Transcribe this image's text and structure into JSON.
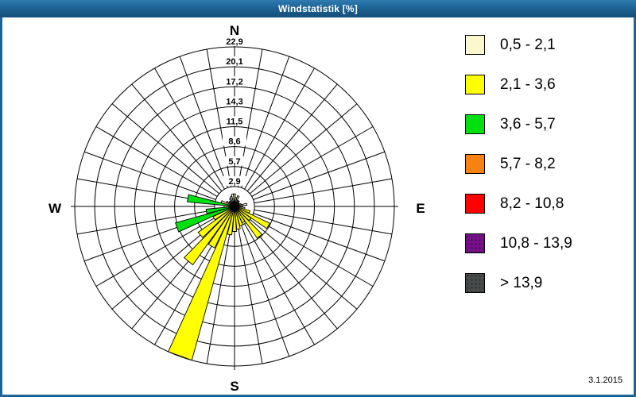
{
  "window": {
    "title": "Windstatistik [%]",
    "date": "3.1.2015"
  },
  "colors": {
    "frame": "#1d6394",
    "titlebar_text": "#ffffff",
    "grid": "#000000",
    "background": "#ffffff"
  },
  "legend": {
    "items": [
      {
        "label": "0,5 - 2,1",
        "color": "#fbf8d0",
        "pattern": "solid"
      },
      {
        "label": "2,1 - 3,6",
        "color": "#ffff00",
        "pattern": "solid"
      },
      {
        "label": "3,6 - 5,7",
        "color": "#00e011",
        "pattern": "solid"
      },
      {
        "label": "5,7 - 8,2",
        "color": "#f58211",
        "pattern": "solid"
      },
      {
        "label": "8,2 - 10,8",
        "color": "#ff0000",
        "pattern": "solid"
      },
      {
        "label": "10,8 - 13,9",
        "color": "#7b0d8c",
        "pattern": "dotted"
      },
      {
        "label": " > 13,9",
        "color": "#4a4a4a",
        "pattern": "dotted"
      }
    ]
  },
  "chart_data": {
    "type": "bar",
    "subtype": "wind-rose-polar",
    "title": "Windstatistik [%]",
    "units": "%",
    "axis_max": 22.9,
    "ring_values": [
      2.9,
      5.7,
      8.6,
      11.5,
      14.3,
      17.2,
      20.1,
      22.9
    ],
    "ring_labels": [
      "2,9",
      "5,7",
      "8,6",
      "11,5",
      "14,3",
      "17,2",
      "20,1",
      "22,9"
    ],
    "sector_width_deg": 10,
    "grid": true,
    "legend_position": "right",
    "compass": {
      "n": "N",
      "e": "E",
      "s": "S",
      "w": "W"
    },
    "speed_class_colors_note": "class = index into legend.items (wind speed class); value = frequency % (radius)",
    "sectors": [
      {
        "deg": 0,
        "value": 1.8,
        "class": 0
      },
      {
        "deg": 10,
        "value": 1.3,
        "class": 0
      },
      {
        "deg": 20,
        "value": 1.6,
        "class": 0
      },
      {
        "deg": 30,
        "value": 1.0,
        "class": 0
      },
      {
        "deg": 40,
        "value": 1.0,
        "class": 0
      },
      {
        "deg": 50,
        "value": 0.8,
        "class": 0
      },
      {
        "deg": 60,
        "value": 0.8,
        "class": 0
      },
      {
        "deg": 70,
        "value": 1.0,
        "class": 0
      },
      {
        "deg": 80,
        "value": 1.8,
        "class": 0
      },
      {
        "deg": 90,
        "value": 1.2,
        "class": 0
      },
      {
        "deg": 100,
        "value": 1.5,
        "class": 0
      },
      {
        "deg": 110,
        "value": 2.3,
        "class": 1
      },
      {
        "deg": 120,
        "value": 5.6,
        "class": 1
      },
      {
        "deg": 130,
        "value": 2.9,
        "class": 1
      },
      {
        "deg": 140,
        "value": 5.6,
        "class": 1
      },
      {
        "deg": 150,
        "value": 2.6,
        "class": 1
      },
      {
        "deg": 160,
        "value": 2.9,
        "class": 1
      },
      {
        "deg": 170,
        "value": 3.3,
        "class": 1
      },
      {
        "deg": 180,
        "value": 3.6,
        "class": 1
      },
      {
        "deg": 190,
        "value": 4.1,
        "class": 1
      },
      {
        "deg": 200,
        "value": 22.9,
        "class": 1
      },
      {
        "deg": 210,
        "value": 6.6,
        "class": 1
      },
      {
        "deg": 220,
        "value": 10.3,
        "class": 1
      },
      {
        "deg": 230,
        "value": 6.4,
        "class": 1
      },
      {
        "deg": 240,
        "value": 3.4,
        "class": 1
      },
      {
        "deg": 250,
        "value": 8.8,
        "class": 2
      },
      {
        "deg": 260,
        "value": 4.1,
        "class": 2
      },
      {
        "deg": 270,
        "value": 1.5,
        "class": 0
      },
      {
        "deg": 280,
        "value": 6.8,
        "class": 2
      },
      {
        "deg": 290,
        "value": 2.0,
        "class": 0
      },
      {
        "deg": 300,
        "value": 1.3,
        "class": 0
      },
      {
        "deg": 310,
        "value": 1.0,
        "class": 0
      },
      {
        "deg": 320,
        "value": 1.0,
        "class": 0
      },
      {
        "deg": 330,
        "value": 1.3,
        "class": 0
      },
      {
        "deg": 340,
        "value": 1.5,
        "class": 0
      },
      {
        "deg": 350,
        "value": 1.8,
        "class": 0
      }
    ]
  }
}
